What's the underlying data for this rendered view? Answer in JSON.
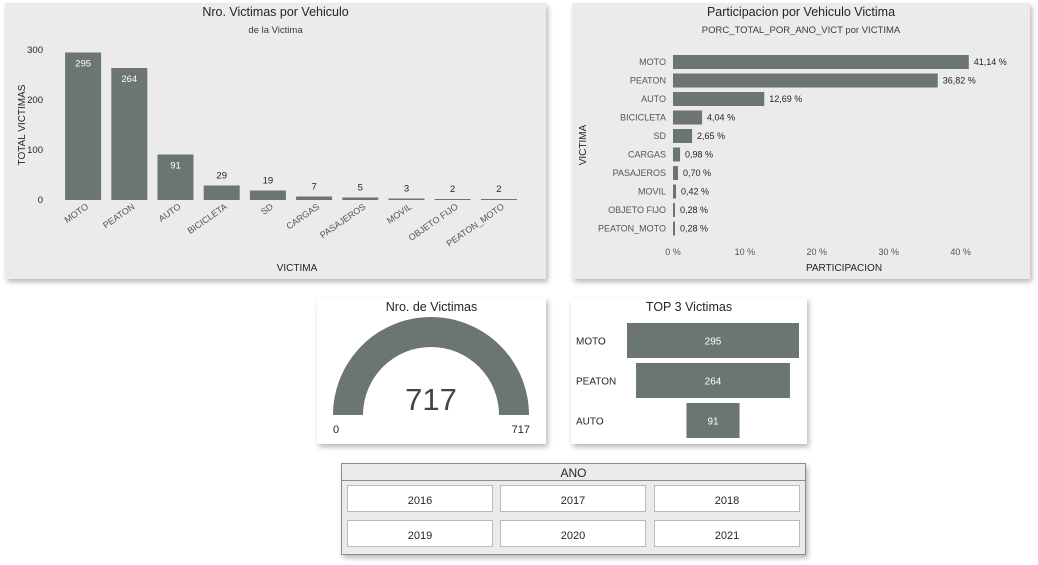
{
  "colors": {
    "bar": "#6b7573",
    "card_bg": "#ebebeb",
    "text": "#252423"
  },
  "chart_data": [
    {
      "id": "victimas",
      "type": "bar",
      "title": "Nro. Victimas por Vehiculo",
      "subtitle": "de la Victima",
      "xlabel": "VICTIMA",
      "ylabel": "TOTAL VICTIMAS",
      "ylim": [
        0,
        300
      ],
      "yticks": [
        0,
        100,
        200,
        300
      ],
      "categories": [
        "MOTO",
        "PEATON",
        "AUTO",
        "BICICLETA",
        "SD",
        "CARGAS",
        "PASAJEROS",
        "MOVIL",
        "OBJETO FIJO",
        "PEATON_MOTO"
      ],
      "values": [
        295,
        264,
        91,
        29,
        19,
        7,
        5,
        3,
        2,
        2
      ],
      "data_labels": [
        "295",
        "264",
        "91",
        "29",
        "19",
        "7",
        "5",
        "3",
        "2",
        "2"
      ]
    },
    {
      "id": "participacion",
      "type": "bar",
      "orientation": "horizontal",
      "title": "Participacion por Vehiculo Victima",
      "subtitle": "PORC_TOTAL_POR_ANO_VICT por VICTIMA",
      "xlabel": "PARTICIPACION",
      "ylabel": "VICTIMA",
      "xlim": [
        0,
        40
      ],
      "xticks": [
        "0 %",
        "10 %",
        "20 %",
        "30 %",
        "40 %"
      ],
      "xtick_values": [
        0,
        10,
        20,
        30,
        40
      ],
      "categories": [
        "MOTO",
        "PEATON",
        "AUTO",
        "BICICLETA",
        "SD",
        "CARGAS",
        "PASAJEROS",
        "MOVIL",
        "OBJETO FIJO",
        "PEATON_MOTO"
      ],
      "values": [
        41.14,
        36.82,
        12.69,
        4.04,
        2.65,
        0.98,
        0.7,
        0.42,
        0.28,
        0.28
      ],
      "data_labels": [
        "41,14 %",
        "36,82 %",
        "12,69 %",
        "4,04 %",
        "2,65 %",
        "0,98 %",
        "0,70 %",
        "0,42 %",
        "0,28 %",
        "0,28 %"
      ]
    },
    {
      "id": "gauge",
      "type": "gauge",
      "title": "Nro. de Victimas",
      "value": 717,
      "min": 0,
      "max": 717,
      "value_label": "717",
      "min_label": "0",
      "max_label": "717"
    },
    {
      "id": "top3",
      "type": "funnel",
      "title": "TOP 3 Victimas",
      "categories": [
        "MOTO",
        "PEATON",
        "AUTO"
      ],
      "values": [
        295,
        264,
        91
      ],
      "data_labels": [
        "295",
        "264",
        "91"
      ]
    }
  ],
  "slicer": {
    "title": "ANO",
    "options": [
      "2016",
      "2017",
      "2018",
      "2019",
      "2020",
      "2021"
    ]
  }
}
